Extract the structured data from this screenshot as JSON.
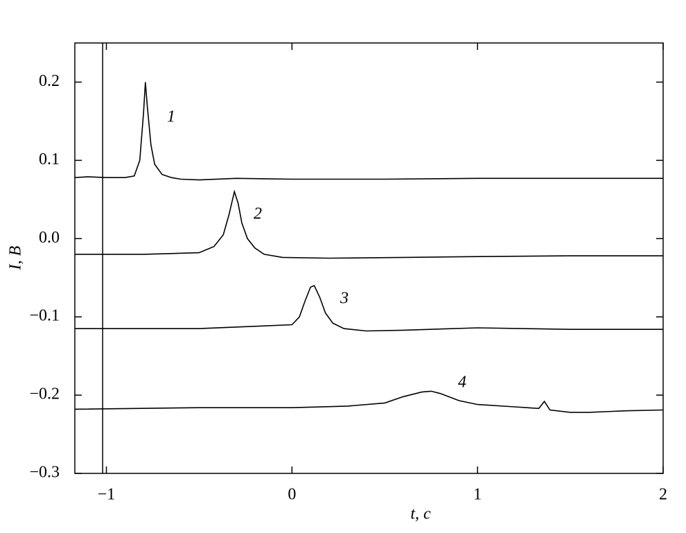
{
  "chart_data": {
    "type": "line",
    "x_label": "t, c",
    "y_label": "I, B",
    "xlim": [
      -1.17,
      2
    ],
    "ylim": [
      -0.3,
      0.25
    ],
    "xticks": [
      {
        "value": -1,
        "label": "−1"
      },
      0,
      1,
      2
    ],
    "yticks": [
      {
        "value": -0.3,
        "label": "−0.3"
      },
      {
        "value": -0.2,
        "label": "−0.2"
      },
      {
        "value": -0.1,
        "label": "−0.1"
      },
      {
        "value": 0,
        "label": "0.0"
      },
      0.1,
      0.2
    ],
    "vline_x": -1.02,
    "series": [
      {
        "name": "1",
        "color": "#000000",
        "x": [
          -1.17,
          -1.1,
          -1.0,
          -0.9,
          -0.85,
          -0.82,
          -0.8,
          -0.79,
          -0.78,
          -0.76,
          -0.74,
          -0.7,
          -0.65,
          -0.6,
          -0.5,
          -0.3,
          0,
          0.5,
          1,
          1.5,
          2
        ],
        "values": [
          0.078,
          0.079,
          0.078,
          0.078,
          0.08,
          0.1,
          0.16,
          0.2,
          0.17,
          0.12,
          0.095,
          0.082,
          0.078,
          0.076,
          0.075,
          0.077,
          0.076,
          0.076,
          0.077,
          0.077,
          0.077
        ]
      },
      {
        "name": "2",
        "color": "#000000",
        "x": [
          -1.17,
          -0.8,
          -0.5,
          -0.42,
          -0.37,
          -0.34,
          -0.32,
          -0.31,
          -0.29,
          -0.27,
          -0.24,
          -0.2,
          -0.15,
          -0.05,
          0.2,
          0.6,
          1,
          1.5,
          2
        ],
        "values": [
          -0.02,
          -0.02,
          -0.018,
          -0.01,
          0.005,
          0.03,
          0.05,
          0.06,
          0.045,
          0.02,
          0.0,
          -0.012,
          -0.02,
          -0.024,
          -0.025,
          -0.024,
          -0.023,
          -0.022,
          -0.022
        ]
      },
      {
        "name": "3",
        "color": "#000000",
        "x": [
          -1.17,
          -0.5,
          0,
          0.04,
          0.07,
          0.1,
          0.12,
          0.15,
          0.18,
          0.22,
          0.28,
          0.4,
          0.6,
          1,
          1.5,
          2
        ],
        "values": [
          -0.115,
          -0.115,
          -0.11,
          -0.1,
          -0.08,
          -0.062,
          -0.06,
          -0.075,
          -0.095,
          -0.108,
          -0.115,
          -0.118,
          -0.117,
          -0.114,
          -0.116,
          -0.116
        ]
      },
      {
        "name": "4",
        "color": "#000000",
        "x": [
          -1.17,
          -0.5,
          0,
          0.3,
          0.5,
          0.6,
          0.7,
          0.75,
          0.8,
          0.9,
          1.0,
          1.2,
          1.33,
          1.36,
          1.39,
          1.5,
          1.6,
          1.8,
          2
        ],
        "values": [
          -0.218,
          -0.216,
          -0.216,
          -0.214,
          -0.21,
          -0.202,
          -0.196,
          -0.195,
          -0.198,
          -0.207,
          -0.212,
          -0.215,
          -0.217,
          -0.208,
          -0.219,
          -0.222,
          -0.222,
          -0.22,
          -0.219
        ]
      }
    ]
  }
}
